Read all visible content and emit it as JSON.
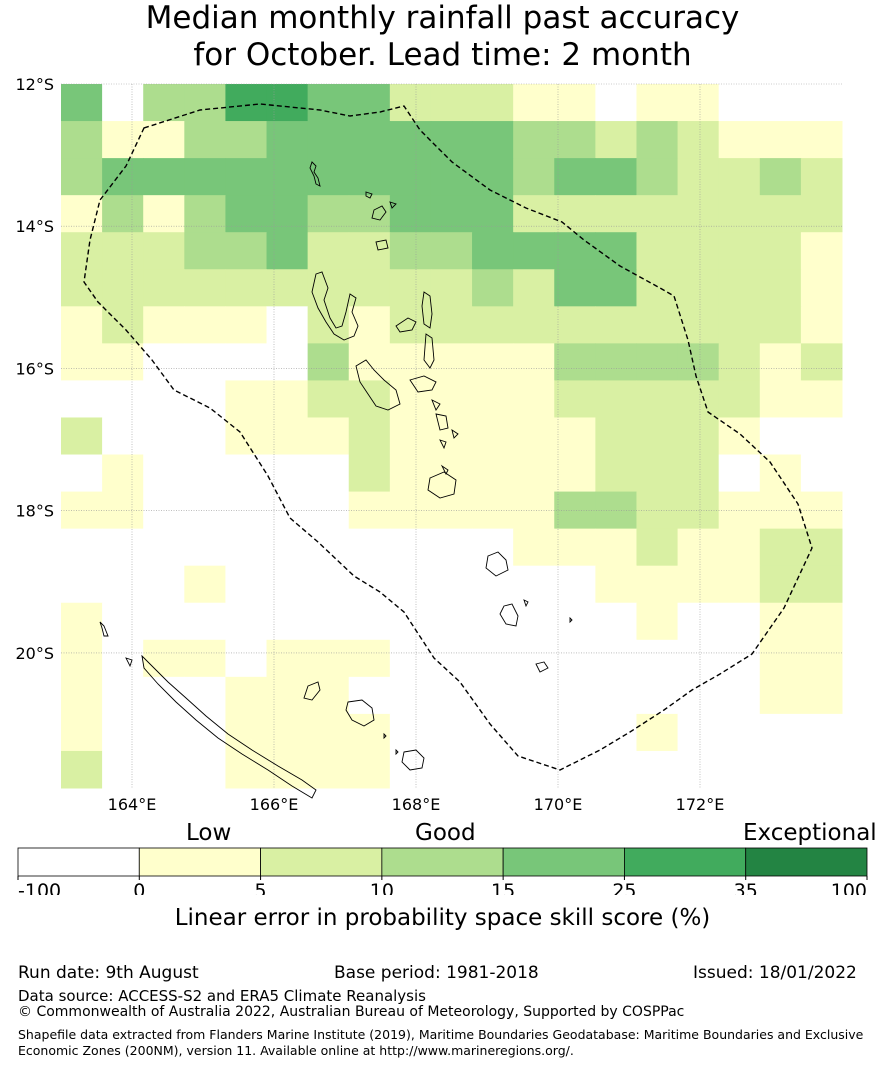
{
  "title": {
    "line1": "Median monthly rainfall past accuracy",
    "line2": "for October. Lead time: 2 month"
  },
  "map": {
    "lat_labels": [
      "12°S",
      "14°S",
      "16°S",
      "18°S",
      "20°S"
    ],
    "lon_labels": [
      "164°E",
      "166°E",
      "168°E",
      "170°E",
      "172°E"
    ],
    "lon_range": [
      163.0,
      174.0
    ],
    "lat_range": [
      -21.9,
      -12.0
    ],
    "cell_size_deg": 0.83,
    "skill_grid": [
      [
        4,
        0,
        3,
        3,
        5,
        5,
        4,
        4,
        2,
        2,
        2,
        1,
        1,
        0,
        1,
        1,
        0,
        0,
        0
      ],
      [
        3,
        1,
        1,
        3,
        3,
        4,
        4,
        4,
        4,
        4,
        4,
        3,
        3,
        2,
        3,
        2,
        1,
        1,
        1
      ],
      [
        3,
        4,
        4,
        4,
        4,
        4,
        4,
        4,
        4,
        4,
        4,
        3,
        4,
        4,
        3,
        2,
        2,
        3,
        2
      ],
      [
        1,
        3,
        1,
        3,
        4,
        4,
        3,
        3,
        4,
        4,
        4,
        2,
        2,
        2,
        2,
        2,
        2,
        2,
        2
      ],
      [
        2,
        2,
        2,
        3,
        3,
        4,
        2,
        2,
        3,
        3,
        4,
        4,
        4,
        4,
        2,
        2,
        2,
        2,
        1
      ],
      [
        2,
        2,
        2,
        2,
        2,
        2,
        2,
        2,
        2,
        2,
        3,
        2,
        4,
        4,
        2,
        2,
        2,
        2,
        1
      ],
      [
        1,
        2,
        1,
        1,
        1,
        0,
        2,
        1,
        2,
        2,
        2,
        2,
        2,
        2,
        2,
        2,
        2,
        2,
        1
      ],
      [
        1,
        1,
        0,
        0,
        0,
        0,
        3,
        1,
        1,
        1,
        1,
        1,
        3,
        3,
        3,
        3,
        2,
        1,
        2
      ],
      [
        0,
        0,
        0,
        0,
        1,
        1,
        2,
        2,
        1,
        1,
        1,
        1,
        2,
        2,
        2,
        2,
        2,
        1,
        1
      ],
      [
        2,
        0,
        0,
        0,
        1,
        1,
        1,
        2,
        1,
        1,
        1,
        1,
        1,
        2,
        2,
        2,
        1,
        0,
        0
      ],
      [
        0,
        1,
        0,
        0,
        0,
        0,
        0,
        2,
        1,
        1,
        1,
        1,
        1,
        2,
        2,
        2,
        0,
        1,
        0
      ],
      [
        1,
        1,
        0,
        0,
        0,
        0,
        0,
        1,
        1,
        1,
        1,
        1,
        3,
        3,
        2,
        2,
        1,
        1,
        1
      ],
      [
        0,
        0,
        0,
        0,
        0,
        0,
        0,
        0,
        0,
        0,
        0,
        1,
        1,
        1,
        2,
        1,
        1,
        2,
        2
      ],
      [
        0,
        0,
        0,
        1,
        0,
        0,
        0,
        0,
        0,
        0,
        0,
        0,
        0,
        1,
        1,
        1,
        1,
        2,
        2
      ],
      [
        1,
        0,
        0,
        0,
        0,
        0,
        0,
        0,
        0,
        0,
        0,
        0,
        0,
        0,
        1,
        0,
        0,
        1,
        1
      ],
      [
        1,
        0,
        1,
        1,
        0,
        1,
        1,
        1,
        0,
        0,
        0,
        0,
        0,
        0,
        0,
        0,
        0,
        1,
        1
      ],
      [
        1,
        0,
        0,
        0,
        1,
        1,
        1,
        0,
        0,
        0,
        0,
        0,
        0,
        0,
        0,
        0,
        0,
        1,
        1
      ],
      [
        1,
        0,
        0,
        0,
        1,
        1,
        1,
        1,
        0,
        0,
        0,
        0,
        0,
        0,
        1,
        0,
        0,
        0,
        0
      ],
      [
        2,
        0,
        0,
        0,
        1,
        1,
        1,
        1,
        0,
        0,
        0,
        0,
        0,
        0,
        0,
        0,
        0,
        0,
        0
      ]
    ]
  },
  "colorbar": {
    "colors": [
      "#ffffff",
      "#ffffcc",
      "#d9f0a3",
      "#addd8e",
      "#78c679",
      "#41ab5d",
      "#238443"
    ],
    "ticks": [
      "-100",
      "0",
      "5",
      "10",
      "15",
      "25",
      "35",
      "100"
    ],
    "category_low": "Low",
    "category_good": "Good",
    "category_exceptional": "Exceptional",
    "label": "Linear error in probability space skill score (%)"
  },
  "footer": {
    "run_date": "Run date: 9th August",
    "base_period": "Base period: 1981-2018",
    "issued": "Issued: 18/01/2022",
    "data_source": "Data source: ACCESS-S2 and ERA5 Climate Reanalysis",
    "copyright": "© Commonwealth of Australia 2022, Australian Bureau of Meteorology, Supported by COSPPac",
    "shapefile_line1": "Shapefile data extracted from Flanders Marine Institute (2019), Maritime Boundaries Geodatabase: Maritime Boundaries and Exclusive",
    "shapefile_line2": "Economic Zones (200NM), version 11. Available online at http://www.marineregions.org/."
  }
}
